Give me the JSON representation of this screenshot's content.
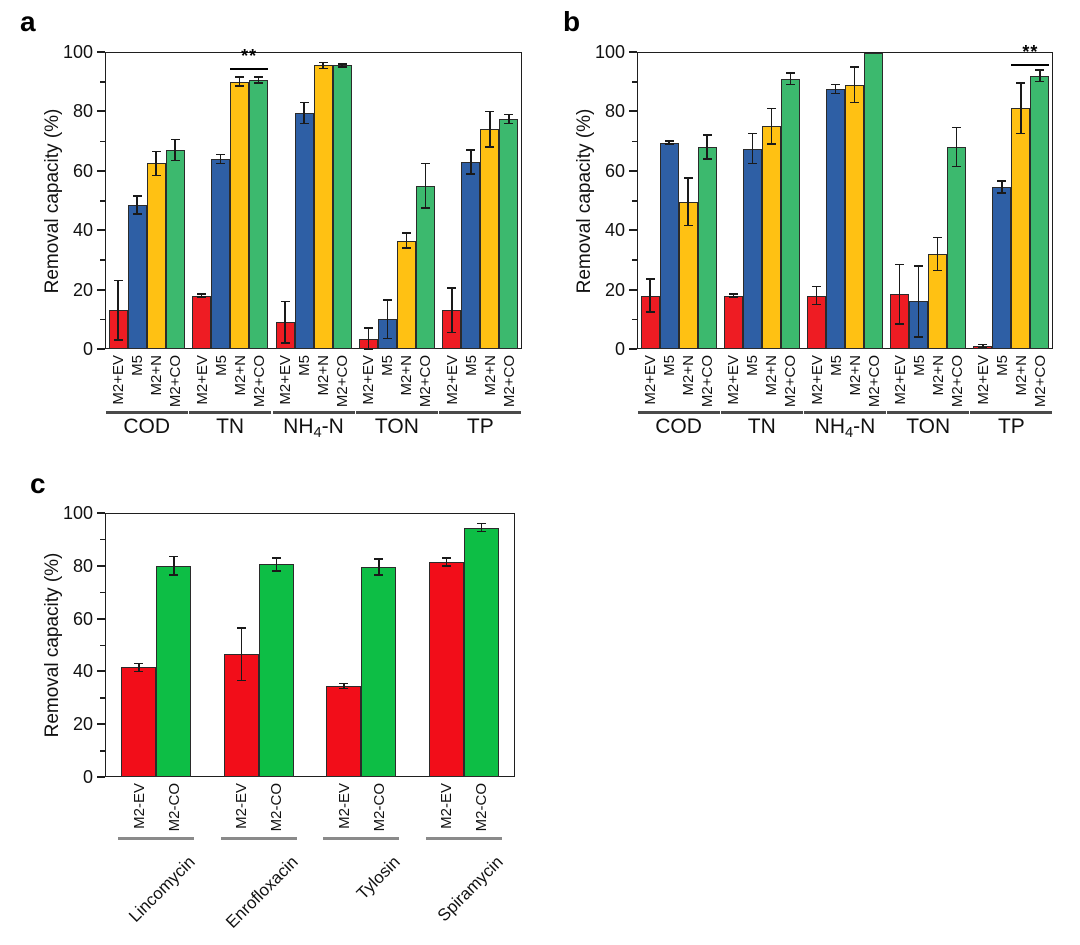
{
  "page": {
    "background": "#ffffff"
  },
  "chart_data": [
    {
      "type": "bar",
      "panel_label": "a",
      "title": "",
      "xlabel": "",
      "ylabel": "Removal capacity (%)",
      "ylim": [
        0,
        100
      ],
      "yticks": [
        0,
        20,
        40,
        60,
        80,
        100
      ],
      "minor_tick_step": 10,
      "grid": false,
      "legend_position": "none",
      "series_labels": [
        "M2+EV",
        "M5",
        "M2+N",
        "M2+CO"
      ],
      "series_colors": [
        "#ee1c23",
        "#2e5fa5",
        "#ffc113",
        "#3cb96e"
      ],
      "categories": [
        "COD",
        "TN",
        "NH4-N",
        "TON",
        "TP"
      ],
      "category_label_parts": {
        "2": [
          {
            "t": "NH"
          },
          {
            "t": "4",
            "sub": true
          },
          {
            "t": "-N"
          }
        ]
      },
      "series": [
        {
          "name": "M2+EV",
          "values": [
            13,
            18,
            9,
            3.5,
            13
          ],
          "errors": [
            10,
            0.5,
            7,
            3.5,
            7.5
          ]
        },
        {
          "name": "M5",
          "values": [
            48.5,
            64,
            79.5,
            10,
            63
          ],
          "errors": [
            3,
            1.5,
            3.5,
            6.5,
            4
          ]
        },
        {
          "name": "M2+N",
          "values": [
            62.5,
            90,
            95.5,
            36.5,
            74
          ],
          "errors": [
            4,
            1.5,
            1,
            2.5,
            6
          ]
        },
        {
          "name": "M2+CO",
          "values": [
            67,
            90.5,
            95.5,
            55,
            77.5
          ],
          "errors": [
            3.5,
            1,
            0.5,
            7.5,
            1.5
          ]
        }
      ],
      "significance": {
        "category": "TN",
        "category_index": 1,
        "series_span": [
          2,
          3
        ],
        "label": "**",
        "line_y": 94.5
      }
    },
    {
      "type": "bar",
      "panel_label": "b",
      "title": "",
      "xlabel": "",
      "ylabel": "Removal capacity (%)",
      "ylim": [
        0,
        100
      ],
      "yticks": [
        0,
        20,
        40,
        60,
        80,
        100
      ],
      "minor_tick_step": 10,
      "grid": false,
      "legend_position": "none",
      "series_labels": [
        "M2+EV",
        "M5",
        "M2+N",
        "M2+CO"
      ],
      "series_colors": [
        "#ee1c23",
        "#2e5fa5",
        "#ffc113",
        "#3cb96e"
      ],
      "categories": [
        "COD",
        "TN",
        "NH4-N",
        "TON",
        "TP"
      ],
      "category_label_parts": {
        "2": [
          {
            "t": "NH"
          },
          {
            "t": "4",
            "sub": true
          },
          {
            "t": "-N"
          }
        ]
      },
      "series": [
        {
          "name": "M2+EV",
          "values": [
            18,
            18,
            18,
            18.5,
            1
          ],
          "errors": [
            5.5,
            0.5,
            3,
            10,
            0.5
          ]
        },
        {
          "name": "M5",
          "values": [
            69.5,
            67.5,
            87.5,
            16,
            54.5
          ],
          "errors": [
            0.5,
            5,
            1.5,
            12,
            2
          ]
        },
        {
          "name": "M2+N",
          "values": [
            49.5,
            75,
            89,
            32,
            81
          ],
          "errors": [
            8,
            6,
            6,
            5.5,
            8.5
          ]
        },
        {
          "name": "M2+CO",
          "values": [
            68,
            91,
            99.8,
            68,
            92
          ],
          "errors": [
            4,
            2,
            0,
            6.5,
            2
          ]
        }
      ],
      "significance": {
        "category": "TP",
        "category_index": 4,
        "series_span": [
          2,
          3
        ],
        "label": "**",
        "line_y": 96
      }
    },
    {
      "type": "bar",
      "panel_label": "c",
      "title": "",
      "xlabel": "",
      "ylabel": "Removal capacity (%)",
      "ylim": [
        0,
        100
      ],
      "yticks": [
        0,
        20,
        40,
        60,
        80,
        100
      ],
      "minor_tick_step": 10,
      "grid": false,
      "legend_position": "none",
      "series_labels": [
        "M2-EV",
        "M2-CO"
      ],
      "series_colors": [
        "#f20d19",
        "#0dbe45"
      ],
      "categories": [
        "Lincomycin",
        "Enrofloxacin",
        "Tylosin",
        "Spiramycin"
      ],
      "series": [
        {
          "name": "M2-EV",
          "values": [
            41.5,
            46.5,
            34.5,
            81.5
          ],
          "errors": [
            1.5,
            10,
            1,
            1.5
          ]
        },
        {
          "name": "M2-CO",
          "values": [
            80,
            80.5,
            79.5,
            94.5
          ],
          "errors": [
            3.5,
            2.5,
            3,
            1.5
          ]
        }
      ],
      "significance": null
    }
  ]
}
